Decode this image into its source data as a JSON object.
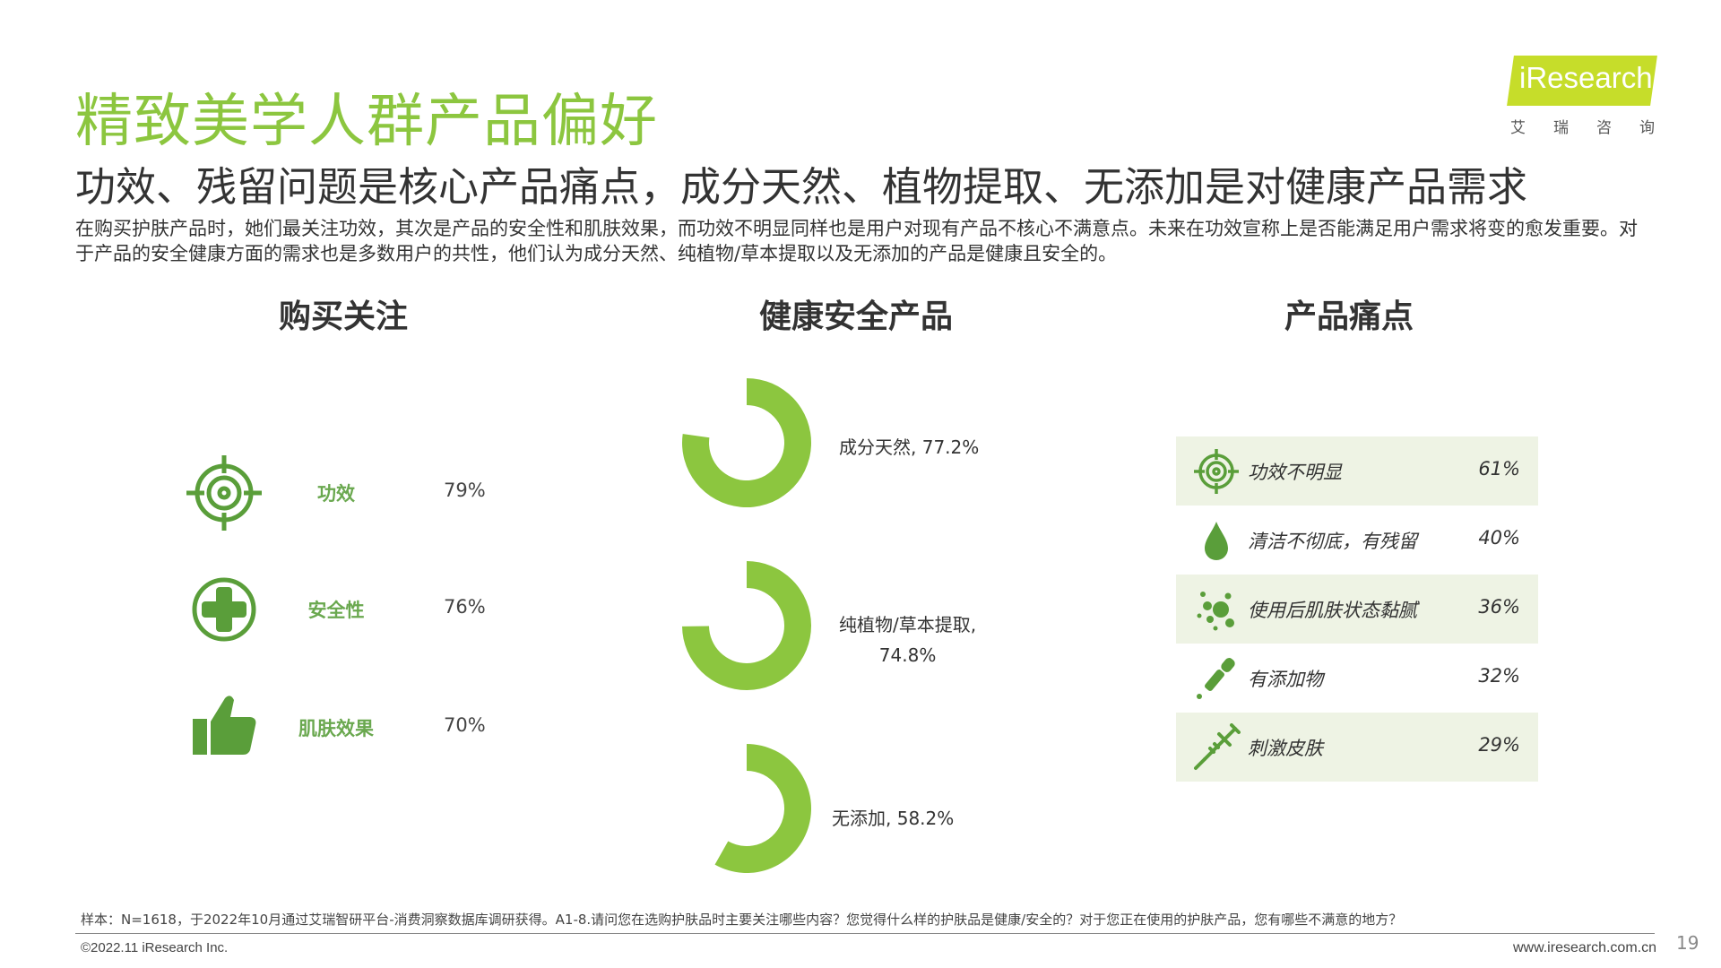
{
  "header": {
    "title": "精致美学人群产品偏好",
    "subtitle": "功效、残留问题是核心产品痛点，成分天然、植物提取、无添加是对健康产品需求",
    "description": "在购买护肤产品时，她们最关注功效，其次是产品的安全性和肌肤效果，而功效不明显同样也是用户对现有产品不核心不满意点。未来在功效宣称上是否能满足用户需求将变的愈发重要。对于产品的安全健康方面的需求也是多数用户的共性，他们认为成分天然、纯植物/草本提取以及无添加的产品是健康且安全的。"
  },
  "logo": {
    "text": "iResearch",
    "cn": "艾瑞咨询"
  },
  "columns": {
    "buy_focus": "购买关注",
    "health": "健康安全产品",
    "pain": "产品痛点"
  },
  "accent": "#8cc63f",
  "buy_focus": [
    {
      "label": "功效",
      "value": "79%",
      "icon": "target-icon"
    },
    {
      "label": "安全性",
      "value": "76%",
      "icon": "plus-cross-icon"
    },
    {
      "label": "肌肤效果",
      "value": "70%",
      "icon": "thumbs-up-icon"
    }
  ],
  "health_labels": [
    {
      "text": "成分天然, 77.2%"
    },
    {
      "line1": "纯植物/草本提取,",
      "line2": "74.8%"
    },
    {
      "text": "无添加, 58.2%"
    }
  ],
  "pain_points": [
    {
      "label": "功效不明显",
      "value": "61%",
      "icon": "target-icon"
    },
    {
      "label": "清洁不彻底，有残留",
      "value": "40%",
      "icon": "droplet-icon"
    },
    {
      "label": "使用后肌肤状态黏腻",
      "value": "36%",
      "icon": "bubbles-icon"
    },
    {
      "label": "有添加物",
      "value": "32%",
      "icon": "dropper-icon"
    },
    {
      "label": "刺激皮肤",
      "value": "29%",
      "icon": "syringe-icon"
    }
  ],
  "chart_data": [
    {
      "type": "table",
      "title": "购买关注",
      "categories": [
        "功效",
        "安全性",
        "肌肤效果"
      ],
      "values": [
        79,
        76,
        70
      ]
    },
    {
      "type": "pie",
      "title": "健康安全产品",
      "categories": [
        "成分天然",
        "纯植物/草本提取",
        "无添加"
      ],
      "values": [
        77.2,
        74.8,
        58.2
      ]
    },
    {
      "type": "table",
      "title": "产品痛点",
      "categories": [
        "功效不明显",
        "清洁不彻底，有残留",
        "使用后肌肤状态黏腻",
        "有添加物",
        "刺激皮肤"
      ],
      "values": [
        61,
        40,
        36,
        32,
        29
      ]
    }
  ],
  "footer": {
    "note": "样本：N=1618，于2022年10月通过艾瑞智研平台-消费洞察数据库调研获得。A1-8.请问您在选购护肤品时主要关注哪些内容？您觉得什么样的护肤品是健康/安全的？对于您正在使用的护肤产品，您有哪些不满意的地方？",
    "copyright": "©2022.11 iResearch Inc.",
    "website": "www.iresearch.com.cn",
    "page_number": "19"
  }
}
